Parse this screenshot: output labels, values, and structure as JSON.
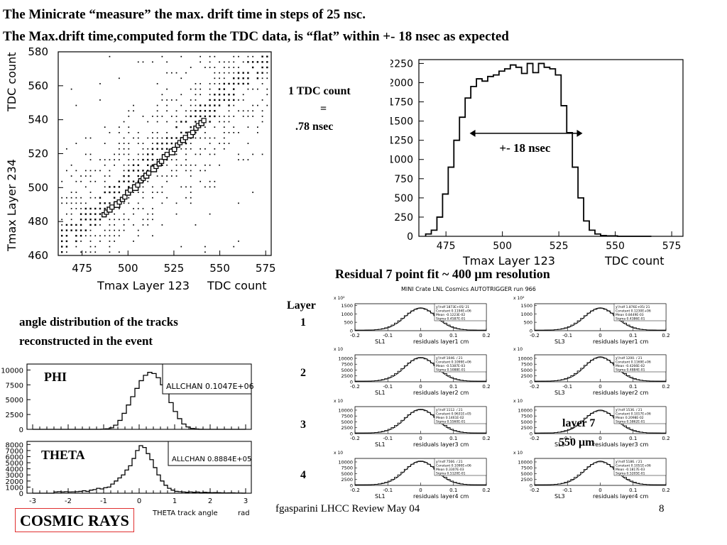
{
  "title_line1": "The Minicrate “measure” the max. drift time in steps of 25 nsc.",
  "title_line2": "The Max.drift time,computed form the TDC data, is “flat” within +- 18 nsec as expected",
  "tdc_note": {
    "line1": "1 TDC count",
    "line2": "=",
    "line3": ".78 nsec"
  },
  "arrow_label": "+- 18 nsec",
  "residual_heading": "Residual 7 point fit   ~ 400 μm resolution",
  "angle_caption": "angle distribution of the tracks reconstructed in the event",
  "layer_label": "Layer",
  "layer_numbers": [
    "1",
    "2",
    "3",
    "4"
  ],
  "layer7_note": {
    "line1": "layer  7",
    "line2": "550 μm"
  },
  "footer": "fgasparini  LHCC Review May 04",
  "page_number": "8",
  "cosmic_label": "COSMIC RAYS",
  "chart_data": [
    {
      "type": "scatter",
      "name": "box-plot",
      "xlabel": "Tmax Layer 123",
      "xunit_label": "TDC count",
      "ylabel": "Tmax Layer 234",
      "yunit_label": "TDC count",
      "xlim": [
        462,
        578
      ],
      "ylim": [
        460,
        580
      ],
      "x_ticks": [
        475,
        500,
        525,
        550,
        575
      ],
      "y_ticks": [
        460,
        480,
        500,
        520,
        540,
        560,
        580
      ],
      "correlation_points": [
        [
          487,
          484
        ],
        [
          490,
          487
        ],
        [
          494,
          490
        ],
        [
          497,
          493
        ],
        [
          500,
          497
        ],
        [
          504,
          500
        ],
        [
          507,
          504
        ],
        [
          510,
          507
        ],
        [
          514,
          511
        ],
        [
          517,
          514
        ],
        [
          520,
          518
        ],
        [
          524,
          521
        ],
        [
          527,
          525
        ],
        [
          530,
          528
        ],
        [
          534,
          531
        ],
        [
          537,
          535
        ],
        [
          540,
          538
        ]
      ]
    },
    {
      "type": "histogram",
      "name": "tmax-histogram",
      "xlabel": "Tmax Layer 123",
      "xunit_label": "TDC count",
      "xlim": [
        463,
        580
      ],
      "ylim": [
        0,
        2300
      ],
      "x_ticks": [
        475,
        500,
        525,
        550,
        575
      ],
      "y_ticks": [
        0,
        250,
        500,
        750,
        1000,
        1250,
        1500,
        1750,
        2000,
        2250
      ],
      "bin_width": 2.5,
      "bin_start": 466,
      "values": [
        30,
        80,
        250,
        550,
        900,
        1250,
        1550,
        1800,
        1950,
        2050,
        2020,
        2080,
        2100,
        2150,
        2180,
        2230,
        2200,
        2120,
        2250,
        2130,
        2250,
        2200,
        2180,
        2100,
        1700,
        1350,
        900,
        500,
        200,
        80,
        30,
        10,
        5,
        5,
        0,
        0,
        0,
        0,
        0,
        0
      ]
    },
    {
      "type": "histogram",
      "name": "phi-histogram",
      "label": "PHI",
      "stat_box": "ALLCHAN  0.1047E+06",
      "ylim": [
        0,
        11000
      ],
      "y_ticks": [
        0,
        2500,
        5000,
        7500,
        10000
      ],
      "bins": 50,
      "values": [
        0,
        0,
        0,
        0,
        0,
        0,
        0,
        0,
        0,
        0,
        0,
        0,
        0,
        0,
        0,
        0,
        20,
        80,
        250,
        700,
        1500,
        2700,
        4100,
        5500,
        6900,
        8200,
        9100,
        9600,
        9400,
        8700,
        7500,
        6000,
        4500,
        3000,
        1800,
        900,
        400,
        150,
        50,
        10,
        0,
        0,
        0,
        0,
        0,
        0,
        0,
        0,
        0,
        0
      ]
    },
    {
      "type": "histogram",
      "name": "theta-histogram",
      "label": "THETA",
      "stat_box": "ALLCHAN  0.8884E+05",
      "xlabel": "THETA track angle",
      "xunit_label": "rad",
      "xlim": [
        -3,
        3
      ],
      "ylim": [
        0,
        8500
      ],
      "x_ticks": [
        -3,
        -2,
        -1,
        0,
        1,
        2,
        3
      ],
      "y_ticks": [
        0,
        1000,
        2000,
        3000,
        4000,
        5000,
        6000,
        7000,
        8000
      ],
      "bins": 60,
      "values": [
        0,
        0,
        0,
        0,
        0,
        0,
        200,
        250,
        200,
        250,
        200,
        220,
        250,
        300,
        400,
        300,
        500,
        600,
        800,
        700,
        900,
        1000,
        1500,
        2000,
        2500,
        3000,
        3800,
        4500,
        5700,
        7000,
        7800,
        7500,
        6500,
        5500,
        4200,
        3000,
        2000,
        1300,
        800,
        500,
        300,
        250,
        200,
        150,
        200,
        150,
        180,
        100,
        150,
        120,
        80,
        100,
        80,
        60,
        40,
        60,
        50,
        30,
        20,
        10
      ]
    },
    {
      "type": "histogram",
      "name": "residual-grid",
      "title": "MINI Crate  LNL Cosmics  AUTOTRIGGER run 966",
      "xlim": [
        -0.2,
        0.2
      ],
      "x_ticks": [
        -0.2,
        -0.1,
        0,
        0.1,
        0.2
      ],
      "panels": [
        {
          "sl": "SL1",
          "xlabel": "residuals layer1   cm",
          "exp": "x 10²",
          "y_ticks": [
            0,
            500,
            1000,
            1500
          ],
          "ymax": 1600,
          "peak": 1300,
          "stats": [
            "χ²/ndf  1873E+05/  21",
            "Constant  0.1194E+06",
            "Mean  -0.1223E-02",
            "Sigma  0.4587E-01"
          ]
        },
        {
          "sl": "SL3",
          "xlabel": "residuals layer1   cm",
          "exp": "x 10²",
          "y_ticks": [
            0,
            500,
            1000,
            1500
          ],
          "ymax": 1600,
          "peak": 1300,
          "stats": [
            "χ²/ndf  1.876E+05/  21",
            "Constant  0.1230E+06",
            "Mean  0.8449E-03",
            "Sigma  0.4386E-01"
          ]
        },
        {
          "sl": "SL1",
          "xlabel": "residuals layer2   cm",
          "exp": "x 10",
          "y_ticks": [
            0,
            2500,
            5000,
            7500,
            10000
          ],
          "ymax": 11500,
          "peak": 10000,
          "stats": [
            "χ²/ndf  1046.  /  21",
            "Constant  0.1099E+06",
            "Mean  -0.5387E-03",
            "Sigma  0.5088E-01"
          ]
        },
        {
          "sl": "SL3",
          "xlabel": "residuals layer2   cm",
          "exp": "x 10",
          "y_ticks": [
            0,
            2500,
            5000,
            7500,
            10000
          ],
          "ymax": 11500,
          "peak": 10200,
          "stats": [
            "χ²/ndf  1200.  /  21",
            "Constant  0.1169E+06",
            "Mean  -0.4266E-02",
            "Sigma  0.4884E-01"
          ]
        },
        {
          "sl": "SL1",
          "xlabel": "residuals layer3   cm",
          "exp": "x 10",
          "y_ticks": [
            0,
            2500,
            5000,
            7500,
            10000
          ],
          "ymax": 11500,
          "peak": 10000,
          "stats": [
            "χ²/ndf  1112.  /  21",
            "Constant  0.9631E+05",
            "Mean  0.1461E-02",
            "Sigma  0.5560E-01"
          ]
        },
        {
          "sl": "SL3",
          "xlabel": "residuals layer3   cm",
          "exp": "x 10",
          "y_ticks": [
            0,
            2500,
            5000,
            7500,
            10000
          ],
          "ymax": 11500,
          "peak": 9600,
          "stats": [
            "χ²/ndf  1536.  /  21",
            "Constant  0.1017E+06",
            "Mean  0.2098E-02",
            "Sigma  0.5862E-01"
          ]
        },
        {
          "sl": "SL1",
          "xlabel": "residuals layer4   cm",
          "exp": "x 10",
          "y_ticks": [
            0,
            2500,
            5000,
            7500,
            10000
          ],
          "ymax": 11500,
          "peak": 10000,
          "stats": [
            "χ²/ndf  7566.  /  21",
            "Constant  0.1090E+06",
            "Mean  0.3307E-03",
            "Sigma  0.5120E-01"
          ]
        },
        {
          "sl": "SL3",
          "xlabel": "residuals layer4   cm",
          "exp": "x 10",
          "y_ticks": [
            0,
            2500,
            5000,
            7500,
            10000
          ],
          "ymax": 11500,
          "peak": 9900,
          "stats": [
            "χ²/ndf  5186.  /  21",
            "Constant  0.1051E+06",
            "Mean  -0.1817E-03",
            "Sigma  0.5205E-01"
          ]
        }
      ]
    }
  ]
}
